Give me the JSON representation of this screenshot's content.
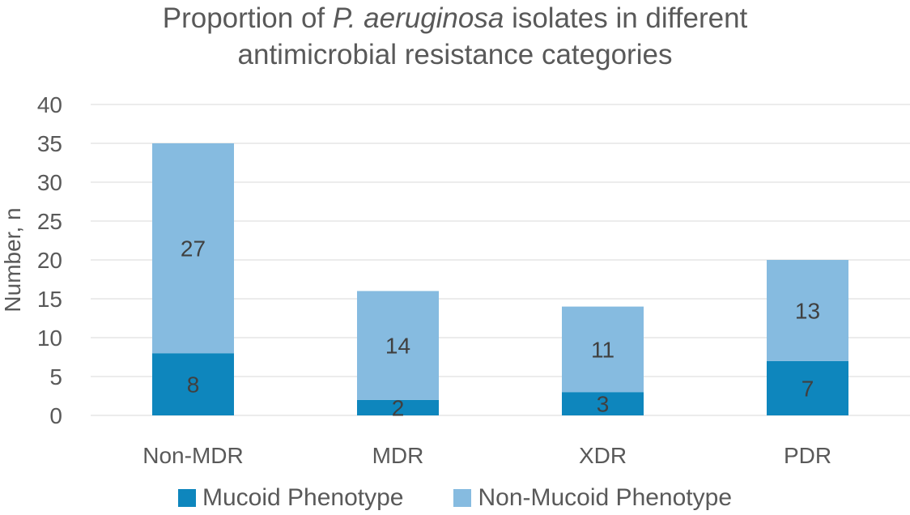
{
  "chart_data": {
    "type": "bar",
    "stacked": true,
    "title_parts": [
      "Proportion of ",
      "P. aeruginosa",
      " isolates in different",
      "antimicrobial resistance categories"
    ],
    "xlabel": "",
    "ylabel": "Number, n",
    "ylim": [
      0,
      40
    ],
    "yticks": [
      "0",
      "5",
      "10",
      "15",
      "20",
      "25",
      "30",
      "35",
      "40"
    ],
    "grid": true,
    "legend_position": "bottom",
    "categories": [
      "Non-MDR",
      "MDR",
      "XDR",
      "PDR"
    ],
    "series": [
      {
        "name": "Mucoid Phenotype",
        "color": "#0e86bd",
        "values": [
          8,
          2,
          3,
          7
        ]
      },
      {
        "name": "Non-Mucoid Phenotype",
        "color": "#86bbe0",
        "values": [
          27,
          14,
          11,
          13
        ]
      }
    ]
  },
  "colors": {
    "text": "#595959",
    "gridline": "#d9d9d9",
    "label": "#404040"
  }
}
